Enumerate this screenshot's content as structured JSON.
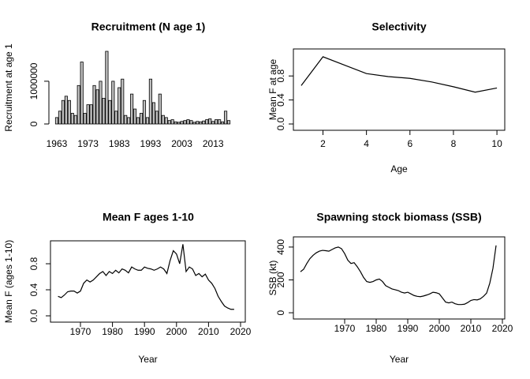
{
  "chart_data": [
    {
      "type": "bar",
      "title": "Recruitment (N age 1)",
      "ylabel": "Recruitment at age 1",
      "color": "#bebebe",
      "categories": [
        "1963",
        null,
        null,
        null,
        null,
        null,
        null,
        null,
        null,
        null,
        "1973",
        null,
        null,
        null,
        null,
        null,
        null,
        null,
        null,
        null,
        "1983",
        null,
        null,
        null,
        null,
        null,
        null,
        null,
        null,
        null,
        "1993",
        null,
        null,
        null,
        null,
        null,
        null,
        null,
        null,
        null,
        "2003",
        null,
        null,
        null,
        null,
        null,
        null,
        null,
        null,
        null,
        "2013",
        null,
        null,
        null,
        null,
        null
      ],
      "values": [
        150000,
        300000,
        550000,
        650000,
        550000,
        250000,
        200000,
        900000,
        1450000,
        250000,
        450000,
        450000,
        900000,
        800000,
        1000000,
        600000,
        1700000,
        550000,
        1000000,
        300000,
        850000,
        1050000,
        200000,
        150000,
        700000,
        350000,
        150000,
        250000,
        550000,
        150000,
        1050000,
        500000,
        300000,
        700000,
        200000,
        150000,
        80000,
        100000,
        50000,
        40000,
        60000,
        80000,
        100000,
        80000,
        40000,
        60000,
        50000,
        70000,
        100000,
        120000,
        60000,
        100000,
        100000,
        50000,
        300000,
        80000
      ],
      "ylim": [
        0,
        1700000
      ],
      "yticks": [
        0,
        1000000
      ]
    },
    {
      "type": "line",
      "title": "Selectivity",
      "xlabel": "Age",
      "ylabel": "Mean F at age",
      "color": "#000000",
      "x": [
        1,
        2,
        3,
        4,
        5,
        6,
        7,
        8,
        9,
        10
      ],
      "values": [
        0.64,
        1.12,
        0.98,
        0.84,
        0.79,
        0.76,
        0.7,
        0.62,
        0.53,
        0.6
      ],
      "xlim": [
        0.64,
        10.36
      ],
      "ylim": [
        -0.105,
        1.25
      ],
      "xticks": [
        2,
        4,
        6,
        8,
        10
      ],
      "yticks": [
        {
          "value": 0,
          "label": "0.0"
        },
        {
          "value": 0.4,
          "label": "0.4"
        },
        {
          "value": 0.8,
          "label": "0.8"
        }
      ]
    },
    {
      "type": "line",
      "title": "Mean F ages 1-10",
      "xlabel": "Year",
      "ylabel": "Mean F (ages 1-10)",
      "color": "#000000",
      "x": [
        1963,
        1964,
        1965,
        1966,
        1967,
        1968,
        1969,
        1970,
        1971,
        1972,
        1973,
        1974,
        1975,
        1976,
        1977,
        1978,
        1979,
        1980,
        1981,
        1982,
        1983,
        1984,
        1985,
        1986,
        1987,
        1988,
        1989,
        1990,
        1991,
        1992,
        1993,
        1994,
        1995,
        1996,
        1997,
        1998,
        1999,
        2000,
        2001,
        2002,
        2003,
        2004,
        2005,
        2006,
        2007,
        2008,
        2009,
        2010,
        2011,
        2012,
        2013,
        2014,
        2015,
        2016,
        2017,
        2018
      ],
      "values": [
        0.3,
        0.28,
        0.32,
        0.37,
        0.38,
        0.38,
        0.35,
        0.38,
        0.5,
        0.55,
        0.52,
        0.55,
        0.6,
        0.65,
        0.68,
        0.62,
        0.68,
        0.65,
        0.7,
        0.66,
        0.72,
        0.7,
        0.66,
        0.75,
        0.72,
        0.7,
        0.7,
        0.75,
        0.73,
        0.72,
        0.7,
        0.72,
        0.75,
        0.72,
        0.65,
        0.85,
        1.0,
        0.95,
        0.8,
        1.1,
        0.68,
        0.75,
        0.72,
        0.62,
        0.65,
        0.6,
        0.64,
        0.55,
        0.5,
        0.42,
        0.3,
        0.22,
        0.15,
        0.12,
        0.1,
        0.1
      ],
      "xlim": [
        1960.64,
        2021.48
      ],
      "ylim": [
        -0.097,
        1.152
      ],
      "xticks": [
        1970,
        1980,
        1990,
        2000,
        2010,
        2020
      ],
      "yticks": [
        {
          "value": 0,
          "label": "0.0"
        },
        {
          "value": 0.4,
          "label": "0.4"
        },
        {
          "value": 0.8,
          "label": "0.8"
        }
      ]
    },
    {
      "type": "line",
      "title": "Spawning stock biomass (SSB)",
      "xlabel": "Year",
      "ylabel": "SSB (kt)",
      "color": "#000000",
      "x": [
        1956,
        1957,
        1958,
        1959,
        1960,
        1961,
        1962,
        1963,
        1964,
        1965,
        1966,
        1967,
        1968,
        1969,
        1970,
        1971,
        1972,
        1973,
        1974,
        1975,
        1976,
        1977,
        1978,
        1979,
        1980,
        1981,
        1982,
        1983,
        1984,
        1985,
        1986,
        1987,
        1988,
        1989,
        1990,
        1991,
        1992,
        1993,
        1994,
        1995,
        1996,
        1997,
        1998,
        1999,
        2000,
        2001,
        2002,
        2003,
        2004,
        2005,
        2006,
        2007,
        2008,
        2009,
        2010,
        2011,
        2012,
        2013,
        2014,
        2015,
        2016,
        2017,
        2018
      ],
      "values": [
        250,
        265,
        300,
        330,
        350,
        365,
        375,
        380,
        378,
        375,
        385,
        395,
        400,
        390,
        360,
        320,
        300,
        305,
        280,
        250,
        215,
        190,
        185,
        190,
        200,
        205,
        190,
        165,
        155,
        145,
        140,
        135,
        125,
        120,
        125,
        115,
        105,
        100,
        98,
        102,
        108,
        115,
        125,
        122,
        115,
        90,
        65,
        60,
        65,
        55,
        50,
        50,
        52,
        62,
        75,
        80,
        78,
        85,
        100,
        120,
        180,
        270,
        410
      ],
      "xlim": [
        1953.75,
        2020.75
      ],
      "ylim": [
        -38,
        462
      ],
      "xticks": [
        1970,
        1980,
        1990,
        2000,
        2010,
        2020
      ],
      "yticks": [
        0,
        200,
        400
      ]
    }
  ]
}
